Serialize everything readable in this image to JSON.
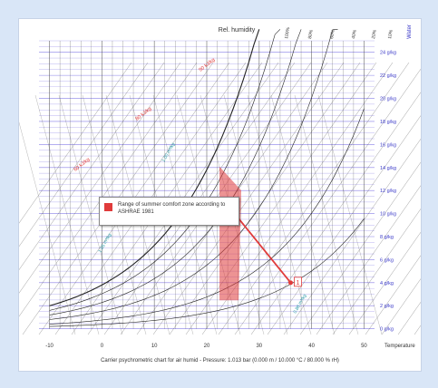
{
  "chart_data": {
    "type": "psychrometric",
    "title": "Rel. humidity",
    "caption": "Carrier psychrometric chart for air humid - Pressure: 1.013 bar (0.000 m / 10.000 °C / 80.000 % rH)",
    "xlabel": "Temperature",
    "x_tick_labels": [
      "-10",
      "0",
      "10",
      "20",
      "30",
      "40",
      "50"
    ],
    "y_right_label": "Water",
    "y_right_tick_labels": [
      "24 g/kg",
      "22 g/kg",
      "20 g/kg",
      "18 g/kg",
      "16 g/kg",
      "14 g/kg",
      "12 g/kg",
      "10 g/kg",
      "8 g/kg",
      "6 g/kg",
      "4 g/kg",
      "2 g/kg",
      "0 g/kg"
    ],
    "y_right_values": [
      24,
      22,
      20,
      18,
      16,
      14,
      12,
      10,
      8,
      6,
      4,
      2,
      0
    ],
    "rh_labels": [
      "100%",
      "80%",
      "60%",
      "40%",
      "20%",
      "10%"
    ],
    "enthalpy_labels": [
      "90 kJ/kg",
      "80 kJ/kg",
      "60 kJ/kg"
    ],
    "volume_labels": [
      "1.00 m³/kg",
      "1.05 m³/kg",
      "0.88 m³/kg"
    ],
    "comfort_zone": {
      "label": "Range of summer comfort zone according to ASHRAE 1981",
      "color": "#e03b3b"
    },
    "points": [
      {
        "label": "1",
        "temperature": 36,
        "humidity": 4
      },
      {
        "label": "0",
        "temperature": 24,
        "humidity": 10.5
      }
    ],
    "colors": {
      "humidity_lines": "#6b5fe0",
      "grid_lines": "#4a4a4a",
      "enthalpy_labels": "#e03b3b",
      "volume_labels": "#2a9aa6",
      "process_line": "#e03b3b",
      "axis_labels_right": "#3a39c8"
    }
  }
}
